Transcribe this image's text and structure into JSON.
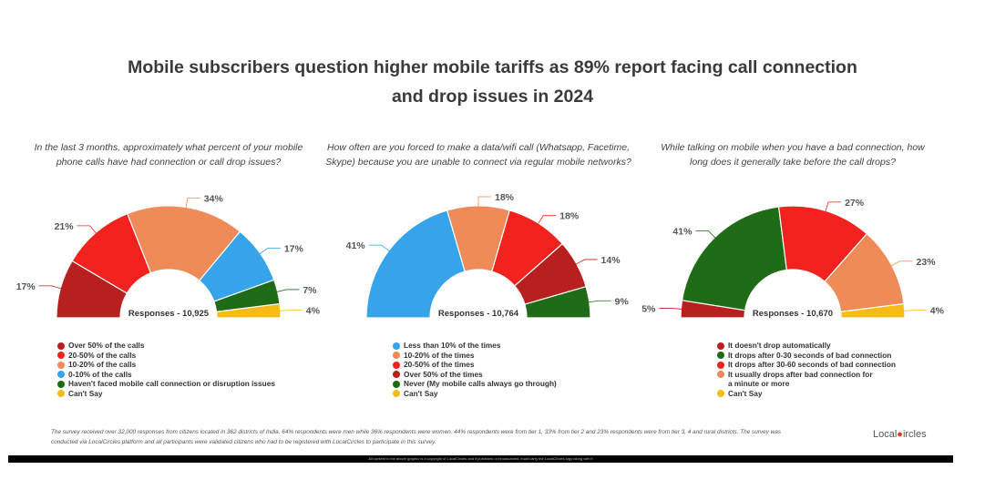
{
  "title_line1": "Mobile subscribers question higher mobile tariffs as 89% report facing call connection",
  "title_line2": "and drop issues in 2024",
  "colors": {
    "dark_red": "#b81f1f",
    "red": "#f2231f",
    "salmon": "#ef8a59",
    "blue": "#35a4ea",
    "green": "#1f6b17",
    "yellow": "#f6bb17"
  },
  "chart_data": [
    {
      "type": "pie",
      "question_line1": "In the last 3 months, approximately what percent of your mobile",
      "question_line2": "phone calls have had connection or call drop issues?",
      "center_label": "Responses - 10,925",
      "categories": [
        "Over 50% of the calls",
        "20-50% of the calls",
        "10-20% of the calls",
        "0-10% of the calls",
        "Haven't faced mobile call connection or disruption issues",
        "Can't Say"
      ],
      "values": [
        17,
        21,
        34,
        17,
        7,
        4
      ],
      "labels": [
        "17%",
        "21%",
        "34%",
        "17%",
        "7%",
        "4%"
      ],
      "colors": [
        "#b81f1f",
        "#f2231f",
        "#ef8a59",
        "#35a4ea",
        "#1f6b17",
        "#f6bb17"
      ],
      "legend": [
        {
          "text": "Over 50% of the calls",
          "color": "#b81f1f"
        },
        {
          "text": "20-50% of the calls",
          "color": "#f2231f"
        },
        {
          "text": "10-20% of the calls",
          "color": "#ef8a59"
        },
        {
          "text": "0-10% of the calls",
          "color": "#35a4ea"
        },
        {
          "text": "Haven't faced mobile call connection or disruption issues",
          "color": "#1f6b17"
        },
        {
          "text": "Can't Say",
          "color": "#f6bb17"
        }
      ]
    },
    {
      "type": "pie",
      "question_line1": "How often are you forced to make a data/wifi call (Whatsapp, Facetime,",
      "question_line2": "Skype) because you are unable to connect via regular mobile networks?",
      "center_label": "Responses - 10,764",
      "categories": [
        "Less than 10% of the times",
        "10-20% of the times",
        "20-50% of the times",
        "Over 50% of the times",
        "Never (My mobile calls always go through)",
        "Can't Say"
      ],
      "values": [
        41,
        18,
        18,
        14,
        9,
        0
      ],
      "labels": [
        "41%",
        "18%",
        "18%",
        "14%",
        "9%",
        ""
      ],
      "colors": [
        "#35a4ea",
        "#ef8a59",
        "#f2231f",
        "#b81f1f",
        "#1f6b17",
        "#f6bb17"
      ],
      "legend": [
        {
          "text": "Less than 10% of the times",
          "color": "#35a4ea"
        },
        {
          "text": "10-20% of the times",
          "color": "#ef8a59"
        },
        {
          "text": "20-50% of the times",
          "color": "#f2231f"
        },
        {
          "text": "Over 50% of the times",
          "color": "#b81f1f"
        },
        {
          "text": "Never (My mobile calls always go through)",
          "color": "#1f6b17"
        },
        {
          "text": "Can't Say",
          "color": "#f6bb17"
        }
      ]
    },
    {
      "type": "pie",
      "question_line1": "While talking on mobile when you have a bad connection, how",
      "question_line2": "long does it generally take before the call drops?",
      "center_label": "Responses - 10,670",
      "categories": [
        "It doesn't drop automatically",
        "It drops after 0-30 seconds of bad connection",
        "It drops after 30-60 seconds of bad connection",
        "It usually drops after bad connection for a minute or more",
        "Can't Say"
      ],
      "values": [
        5,
        41,
        27,
        23,
        4
      ],
      "labels": [
        "5%",
        "41%",
        "27%",
        "23%",
        "4%"
      ],
      "colors": [
        "#b81f1f",
        "#1f6b17",
        "#f2231f",
        "#ef8a59",
        "#f6bb17"
      ],
      "legend": [
        {
          "text": "It doesn't drop automatically",
          "color": "#b81f1f"
        },
        {
          "text": "It drops after 0-30 seconds of bad connection",
          "color": "#1f6b17"
        },
        {
          "text": "It drops after 30-60 seconds of bad connection",
          "color": "#f2231f"
        },
        {
          "text": "It usually drops after bad connection for",
          "color": "#ef8a59"
        },
        {
          "text": "a minute or more",
          "color": ""
        },
        {
          "text": "Can't Say",
          "color": "#f6bb17"
        }
      ]
    }
  ],
  "footnote_line1": "The survey received over 32,000 responses from citizens located in 362 districts of India. 64% respondents were men while 36% respondents were women. 44% respondents were from tier 1, 33% from tier 2 and 23% respondents were from tier 3, 4 and rural districts. The survey was",
  "footnote_line2": "conducted via LocalCircles platform and all participants were validated citizens who had to be registered with LocalCircles to participate in this survey.",
  "logo_local": "Local",
  "logo_circles": "ircles",
  "copyright": "All content in the above graphic is a copyright of LocalCircles and if published or broadcasted, must carry the LocalCircles logo along with it"
}
